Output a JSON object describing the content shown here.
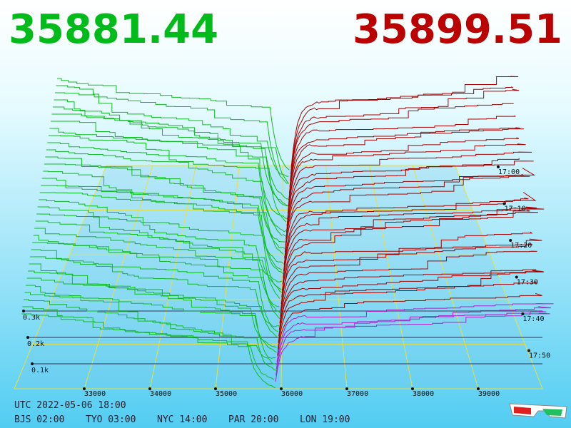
{
  "bid_price": "35881.44",
  "ask_price": "35899.51",
  "price_axis": [
    "33000",
    "34000",
    "35000",
    "36000",
    "37000",
    "38000",
    "39000"
  ],
  "depth_axis": [
    "0.3k",
    "0.2k",
    "0.1k"
  ],
  "time_axis": [
    "17:00",
    "17:10",
    "17:20",
    "17:30",
    "17:40",
    "17:50"
  ],
  "clock": {
    "utc": "UTC 2022-05-06 18:00",
    "zones": [
      "BJS 02:00",
      "TYO 03:00",
      "NYC 14:00",
      "PAR 20:00",
      "LON 19:00"
    ]
  }
}
